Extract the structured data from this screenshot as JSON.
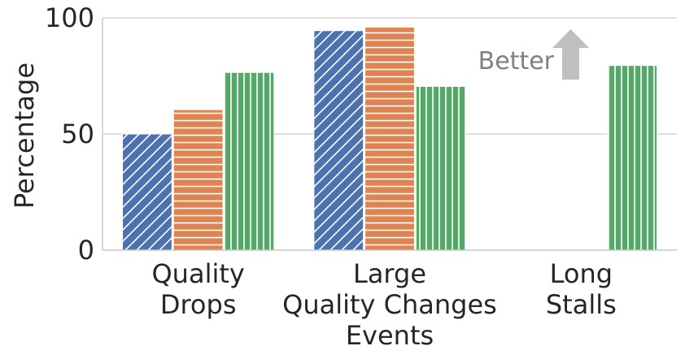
{
  "chart_data": {
    "type": "bar",
    "title": "",
    "xlabel": "Events",
    "ylabel": "Percentage",
    "categories": [
      [
        "Quality",
        "Drops"
      ],
      [
        "Large",
        "Quality Changes"
      ],
      [
        "Long",
        "Stalls"
      ]
    ],
    "ylim": [
      0,
      100
    ],
    "yticks": [
      0,
      50,
      100
    ],
    "grid": "horizontal",
    "series": [
      {
        "values": [
          50,
          94.5,
          null
        ],
        "color": "#4c72b0",
        "hatch": "diagonal"
      },
      {
        "values": [
          60.5,
          96,
          null
        ],
        "color": "#dd8452",
        "hatch": "horizontal"
      },
      {
        "values": [
          76.5,
          70.5,
          79.5
        ],
        "color": "#55a868",
        "hatch": "vertical"
      }
    ],
    "annotation": {
      "text": "Better",
      "icon": "up-arrow-icon",
      "color": "#bfbfbf",
      "text_color": "#808080"
    }
  }
}
